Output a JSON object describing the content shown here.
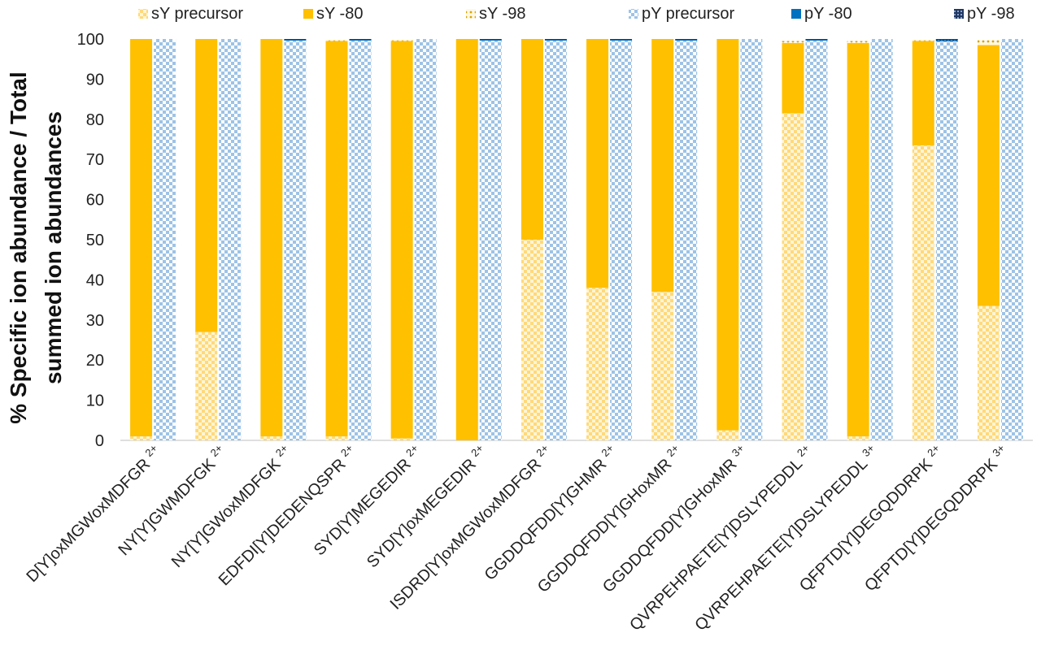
{
  "chart_data": {
    "type": "bar",
    "stacked": true,
    "ylabel_lines": [
      "% Specific ion abundance / Total",
      "summed ion abundances"
    ],
    "xlabel": "",
    "ylim": [
      0,
      100
    ],
    "yticks": [
      0,
      10,
      20,
      30,
      40,
      50,
      60,
      70,
      80,
      90,
      100
    ],
    "legend_position": "top",
    "categories": [
      {
        "name": "D[Y]oxMGWoxMDFGR",
        "charge": "2+"
      },
      {
        "name": "NY[Y]GWMDFGK",
        "charge": "2+"
      },
      {
        "name": "NY[Y]GWoxMDFGK",
        "charge": "2+"
      },
      {
        "name": "EDFDI[Y]DEDENQSPR",
        "charge": "2+"
      },
      {
        "name": "SYD[Y]MEGEDIR",
        "charge": "2+"
      },
      {
        "name": "SYD[Y]oxMEGEDIR",
        "charge": "2+"
      },
      {
        "name": "ISDRD[Y]oxMGWoxMDFGR",
        "charge": "2+"
      },
      {
        "name": "GGDDQFDD[Y]GHMR",
        "charge": "2+"
      },
      {
        "name": "GGDDQFDD[Y]GHoxMR",
        "charge": "2+"
      },
      {
        "name": "GGDDQFDD[Y]GHoxMR",
        "charge": "3+"
      },
      {
        "name": "QVRPEHPAETE[Y]DSLYPEDDL",
        "charge": "2+"
      },
      {
        "name": "QVRPEHPAETE[Y]DSLYPEDDL",
        "charge": "3+"
      },
      {
        "name": "QFPTD[Y]DEGQDDRPK",
        "charge": "2+"
      },
      {
        "name": "QFPTD[Y]DEGQDDRPK",
        "charge": "3+"
      }
    ],
    "series": [
      {
        "name": "sY precursor",
        "stack": "sY",
        "color": "#ffc000",
        "pattern": "check-light",
        "values": [
          1,
          27,
          1,
          1,
          0.5,
          0,
          50,
          38,
          37,
          2.5,
          81.5,
          1,
          73.5,
          33.5
        ]
      },
      {
        "name": "sY -80",
        "stack": "sY",
        "color": "#ffc000",
        "pattern": "solid",
        "values": [
          99,
          73,
          99,
          98.5,
          99,
          100,
          50,
          62,
          63,
          97.5,
          17.5,
          98,
          26,
          65
        ]
      },
      {
        "name": "sY -98",
        "stack": "sY",
        "color": "#ffc000",
        "pattern": "dots",
        "values": [
          0,
          0,
          0,
          0.3,
          0.3,
          0,
          0,
          0,
          0,
          0,
          0.5,
          0.5,
          0.3,
          1.2
        ]
      },
      {
        "name": "pY precursor",
        "stack": "pY",
        "color": "#9dc3e6",
        "pattern": "check-blue",
        "values": [
          100,
          100,
          99.6,
          99.6,
          100,
          99.6,
          99.6,
          99.6,
          99.6,
          100,
          99.6,
          100,
          99.4,
          100
        ]
      },
      {
        "name": "pY -80",
        "stack": "pY",
        "color": "#0070c0",
        "pattern": "solid",
        "values": [
          0,
          0,
          0.2,
          0.2,
          0,
          0.2,
          0.2,
          0.2,
          0.2,
          0,
          0.2,
          0,
          0.3,
          0
        ]
      },
      {
        "name": "pY -98",
        "stack": "pY",
        "color": "#1f3864",
        "pattern": "grid-dark",
        "values": [
          0,
          0,
          0.2,
          0.2,
          0,
          0.2,
          0.2,
          0.2,
          0.2,
          0,
          0.2,
          0,
          0.3,
          0
        ]
      }
    ]
  }
}
